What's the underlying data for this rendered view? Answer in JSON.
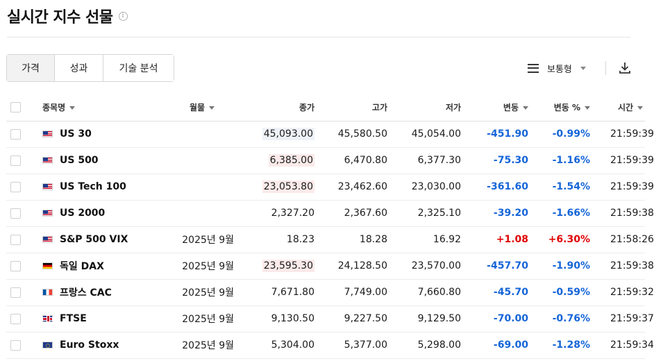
{
  "title": "실시간 지수 선물",
  "info_icon_glyph": "i",
  "tabs": [
    "가격",
    "성과",
    "기술 분석"
  ],
  "view_select": {
    "label": "보통형"
  },
  "columns": {
    "name": "종목명",
    "month": "월물",
    "close": "종가",
    "high": "고가",
    "low": "저가",
    "change": "변동",
    "change_pct": "변동 %",
    "time": "시간"
  },
  "rows": [
    {
      "flag": "us",
      "name": "US 30",
      "month": "",
      "close": "45,093.00",
      "close_hl": "blue",
      "high": "45,580.50",
      "low": "45,054.00",
      "change": "-451.90",
      "change_pct": "-0.99%",
      "dir": "neg",
      "time": "21:59:39"
    },
    {
      "flag": "us",
      "name": "US 500",
      "month": "",
      "close": "6,385.00",
      "close_hl": "red",
      "high": "6,470.80",
      "low": "6,377.30",
      "change": "-75.30",
      "change_pct": "-1.16%",
      "dir": "neg",
      "time": "21:59:39"
    },
    {
      "flag": "us",
      "name": "US Tech 100",
      "month": "",
      "close": "23,053.80",
      "close_hl": "red",
      "high": "23,462.60",
      "low": "23,030.00",
      "change": "-361.60",
      "change_pct": "-1.54%",
      "dir": "neg",
      "time": "21:59:39"
    },
    {
      "flag": "us",
      "name": "US 2000",
      "month": "",
      "close": "2,327.20",
      "close_hl": "",
      "high": "2,367.60",
      "low": "2,325.10",
      "change": "-39.20",
      "change_pct": "-1.66%",
      "dir": "neg",
      "time": "21:59:38"
    },
    {
      "flag": "us",
      "name": "S&P 500 VIX",
      "month": "2025년 9월",
      "close": "18.23",
      "close_hl": "",
      "high": "18.28",
      "low": "16.92",
      "change": "+1.08",
      "change_pct": "+6.30%",
      "dir": "pos",
      "time": "21:58:26"
    },
    {
      "flag": "de",
      "name": "독일 DAX",
      "month": "2025년 9월",
      "close": "23,595.30",
      "close_hl": "red",
      "high": "24,128.50",
      "low": "23,570.00",
      "change": "-457.70",
      "change_pct": "-1.90%",
      "dir": "neg",
      "time": "21:59:38"
    },
    {
      "flag": "fr",
      "name": "프랑스 CAC",
      "month": "2025년 9월",
      "close": "7,671.80",
      "close_hl": "",
      "high": "7,749.00",
      "low": "7,660.80",
      "change": "-45.70",
      "change_pct": "-0.59%",
      "dir": "neg",
      "time": "21:59:32"
    },
    {
      "flag": "uk",
      "name": "FTSE",
      "month": "2025년 9월",
      "close": "9,130.50",
      "close_hl": "",
      "high": "9,227.50",
      "low": "9,129.50",
      "change": "-70.00",
      "change_pct": "-0.76%",
      "dir": "neg",
      "time": "21:59:37"
    },
    {
      "flag": "eu",
      "name": "Euro Stoxx",
      "month": "2025년 9월",
      "close": "5,304.00",
      "close_hl": "",
      "high": "5,377.00",
      "low": "5,298.00",
      "change": "-69.00",
      "change_pct": "-1.28%",
      "dir": "neg",
      "time": "21:59:34"
    }
  ],
  "colors": {
    "negative": "#1565d8",
    "positive": "#e00000"
  }
}
